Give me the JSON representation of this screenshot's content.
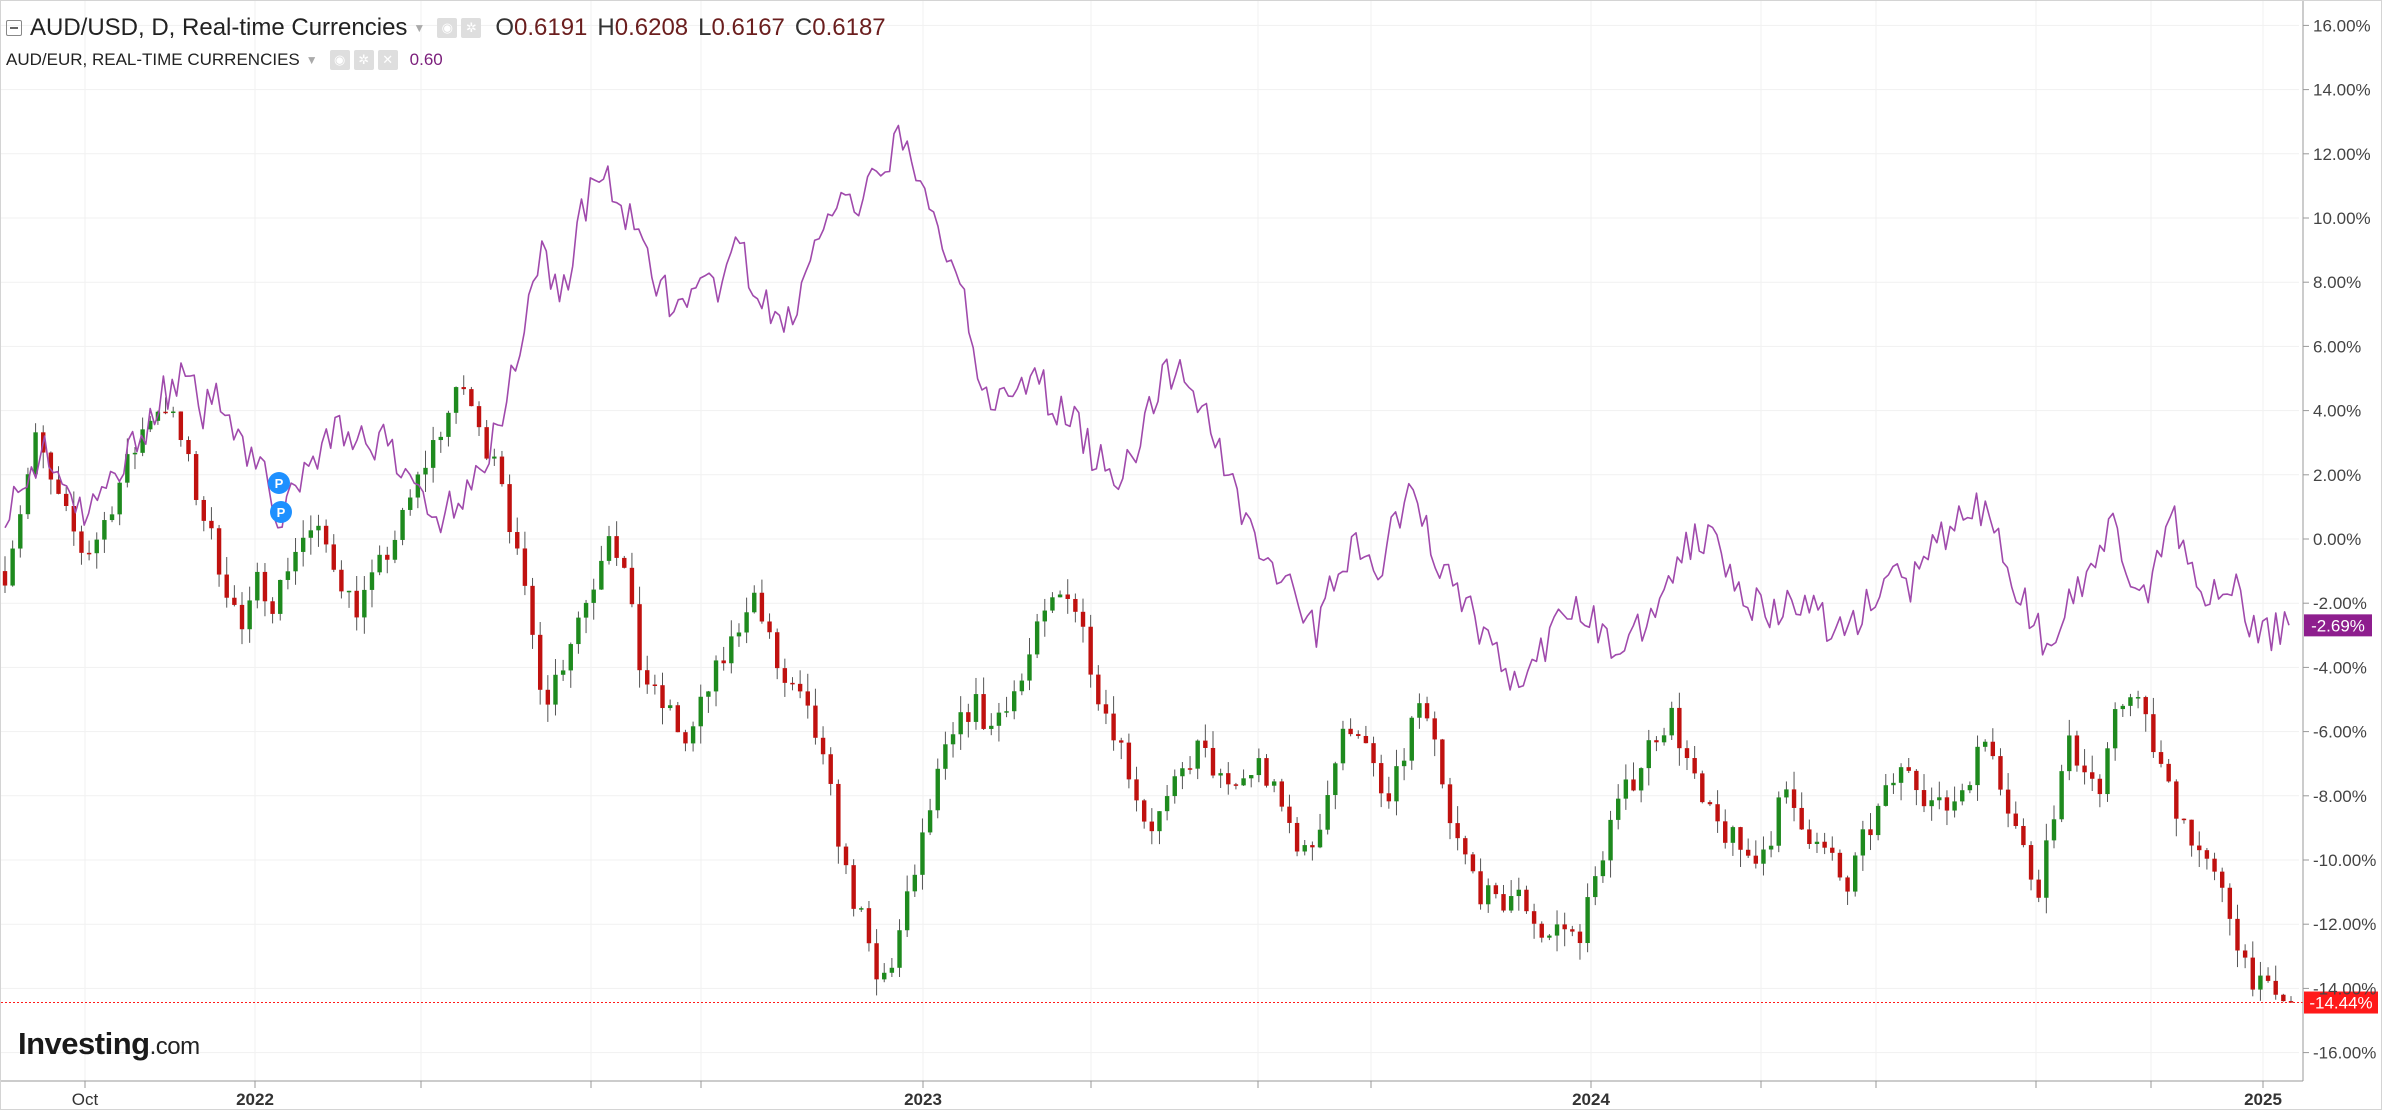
{
  "legend": {
    "main_title": "AUD/USD, D, Real-time Currencies",
    "open_label": "O",
    "open_value": "0.6191",
    "high_label": "H",
    "high_value": "0.6208",
    "low_label": "L",
    "low_value": "0.6167",
    "close_label": "C",
    "close_value": "0.6187",
    "secondary_title": "AUD/EUR, REAL-TIME CURRENCIES",
    "secondary_value": "0.60"
  },
  "branding": {
    "name": "Investing",
    "suffix": ".com"
  },
  "badges": [
    {
      "label": "P"
    },
    {
      "label": "P"
    }
  ],
  "colors": {
    "up_candle": "#1e8a1e",
    "down_candle": "#c0110f",
    "wick": "#555555",
    "compare_line": "#a04aac",
    "current_price": "#ff1a1a",
    "compare_tag": "#8e1e8e",
    "grid": "#f1f1f1",
    "badge": "#1e90ff"
  },
  "chart_data": {
    "type": "line",
    "title": "AUD/USD, D, Real-time Currencies",
    "xlabel": "",
    "ylabel": "",
    "y_axis_unit": "percent change",
    "ylim": [
      -16.6,
      16.6
    ],
    "y_ticks": [
      "16.00%",
      "14.00%",
      "12.00%",
      "10.00%",
      "8.00%",
      "6.00%",
      "4.00%",
      "2.00%",
      "0.00%",
      "-2.00%",
      "-4.00%",
      "-6.00%",
      "-8.00%",
      "-10.00%",
      "-12.00%",
      "-14.00%",
      "-16.00%"
    ],
    "x_ticks": [
      "Oct",
      "2022",
      "2023",
      "2024",
      "2025"
    ],
    "grid": true,
    "current_values": {
      "primary": "-14.44%",
      "secondary": "-2.69%"
    },
    "series": [
      {
        "name": "AUD/USD, D, Real-time Currencies",
        "style": "candlestick",
        "close": [
          -1.0,
          1.0,
          3.2,
          1.5,
          0.5,
          -0.5,
          0.2,
          1.5,
          2.6,
          3.8,
          4.3,
          3.2,
          1.5,
          0.0,
          -1.5,
          -3.0,
          -1.2,
          -2.0,
          -0.5,
          0.2,
          0.0,
          -1.0,
          -2.2,
          -1.5,
          -0.5,
          0.5,
          1.8,
          3.0,
          4.0,
          4.8,
          3.0,
          2.8,
          0.0,
          -2.5,
          -5.0,
          -4.0,
          -2.5,
          -1.5,
          0.5,
          -1.0,
          -4.0,
          -5.0,
          -5.5,
          -6.5,
          -5.0,
          -4.0,
          -3.0,
          -1.5,
          -3.0,
          -4.5,
          -5.0,
          -6.0,
          -8.0,
          -10.5,
          -12.0,
          -14.0,
          -13.0,
          -11.0,
          -9.0,
          -7.0,
          -6.0,
          -5.0,
          -6.0,
          -5.0,
          -4.5,
          -3.0,
          -2.0,
          -1.5,
          -3.0,
          -5.0,
          -6.0,
          -7.5,
          -9.0,
          -8.5,
          -7.5,
          -6.5,
          -7.0,
          -8.0,
          -7.5,
          -7.0,
          -8.0,
          -9.0,
          -10.0,
          -8.5,
          -6.5,
          -5.5,
          -7.0,
          -8.5,
          -7.0,
          -5.0,
          -6.5,
          -9.0,
          -10.0,
          -11.0,
          -11.5,
          -11.0,
          -11.5,
          -12.5,
          -12.0,
          -12.5,
          -11.0,
          -9.0,
          -8.0,
          -7.0,
          -6.0,
          -5.5,
          -7.0,
          -8.5,
          -9.0,
          -9.5,
          -10.0,
          -9.5,
          -8.0,
          -8.5,
          -9.5,
          -10.0,
          -11.0,
          -9.5,
          -8.5,
          -7.5,
          -7.0,
          -8.0,
          -8.5,
          -8.0,
          -7.0,
          -6.0,
          -8.0,
          -9.5,
          -11.0,
          -8.5,
          -6.5,
          -7.0,
          -8.0,
          -5.5,
          -4.5,
          -6.0,
          -7.5,
          -8.5,
          -9.5,
          -10.5,
          -11.5,
          -13.0,
          -14.0,
          -14.3,
          -14.44
        ]
      },
      {
        "name": "AUD/EUR, REAL-TIME CURRENCIES",
        "style": "line",
        "values": [
          1.0,
          1.5,
          3.0,
          1.5,
          0.5,
          1.5,
          2.5,
          3.5,
          4.5,
          5.0,
          4.0,
          4.5,
          3.0,
          2.0,
          0.5,
          2.0,
          3.0,
          3.5,
          3.0,
          3.0,
          2.0,
          1.5,
          0.5,
          1.5,
          2.5,
          3.5,
          6.5,
          9.0,
          7.5,
          10.0,
          11.5,
          10.5,
          9.0,
          8.0,
          7.0,
          7.5,
          8.0,
          9.0,
          7.5,
          6.5,
          7.5,
          9.5,
          10.5,
          10.0,
          11.5,
          12.5,
          11.0,
          9.5,
          8.5,
          5.5,
          4.0,
          4.5,
          5.0,
          4.0,
          3.5,
          2.5,
          2.0,
          3.0,
          4.5,
          5.5,
          4.5,
          3.0,
          1.5,
          0.0,
          -1.0,
          -2.0,
          -3.0,
          -1.0,
          0.0,
          -1.5,
          0.5,
          1.5,
          -0.5,
          -1.5,
          -2.5,
          -3.5,
          -4.5,
          -4.0,
          -3.0,
          -2.0,
          -2.5,
          -3.5,
          -3.0,
          -2.0,
          -1.0,
          0.0,
          0.3,
          -1.0,
          -2.0,
          -2.5,
          -2.0,
          -2.0,
          -3.0,
          -2.5,
          -2.0,
          -1.0,
          -1.5,
          -0.5,
          0.5,
          1.0,
          0.5,
          -1.0,
          -2.5,
          -3.5,
          -2.0,
          -1.0,
          0.5,
          -1.5,
          -2.0,
          1.0,
          -0.5,
          -2.0,
          -1.0,
          -2.5,
          -3.0,
          -2.69
        ]
      }
    ]
  }
}
